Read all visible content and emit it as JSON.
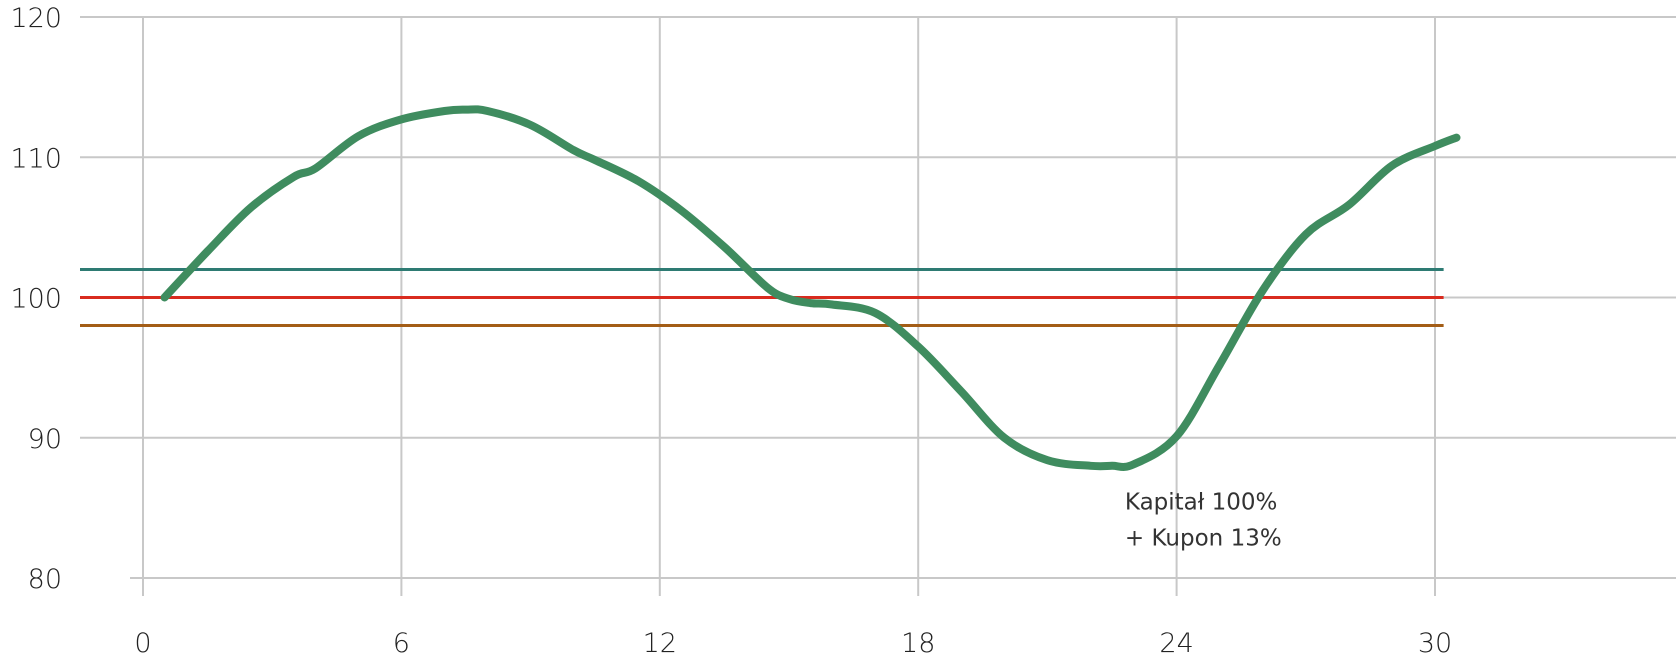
{
  "chart_data": {
    "type": "line",
    "title": "",
    "xlabel": "",
    "ylabel": "",
    "xlim": [
      -0.5,
      35.5
    ],
    "ylim": [
      80,
      120
    ],
    "x_ticks": [
      "0",
      "6",
      "12",
      "18",
      "24",
      "30"
    ],
    "y_ticks": [
      "80",
      "90",
      "100",
      "110",
      "120"
    ],
    "x_tick_values": [
      0,
      6,
      12,
      18,
      24,
      30
    ],
    "y_tick_values": [
      80,
      90,
      100,
      110,
      120
    ],
    "grid": true,
    "series": [
      {
        "color": "#3f8c5f",
        "x": [
          0.5,
          1.5,
          2.5,
          3.5,
          4.0,
          5.0,
          6.0,
          7.0,
          7.5,
          8.0,
          9.0,
          10.0,
          10.5,
          11.5,
          12.5,
          13.5,
          14.5,
          15.0,
          15.5,
          16.0,
          17.0,
          18.0,
          19.0,
          20.0,
          21.0,
          22.0,
          22.5,
          23.0,
          24.0,
          25.0,
          26.0,
          27.0,
          28.0,
          29.0,
          30.0,
          30.5
        ],
        "y": [
          100.0,
          103.3,
          106.4,
          108.6,
          109.2,
          111.5,
          112.7,
          113.3,
          113.4,
          113.3,
          112.3,
          110.5,
          109.8,
          108.3,
          106.2,
          103.6,
          100.7,
          99.9,
          99.6,
          99.5,
          98.9,
          96.5,
          93.3,
          90.0,
          88.4,
          88.0,
          88.0,
          88.1,
          90.1,
          95.2,
          100.5,
          104.5,
          106.6,
          109.4,
          110.8,
          111.4
        ]
      }
    ],
    "reference_lines": [
      {
        "y": 102,
        "color": "#2e7b73"
      },
      {
        "y": 100,
        "color": "#d92b1f"
      },
      {
        "y": 98,
        "color": "#a35d16"
      }
    ],
    "annotation": {
      "lines": [
        "Kapitał 100%",
        "+ Kupon 13%"
      ],
      "x": 22.8,
      "y": 84.9
    }
  }
}
